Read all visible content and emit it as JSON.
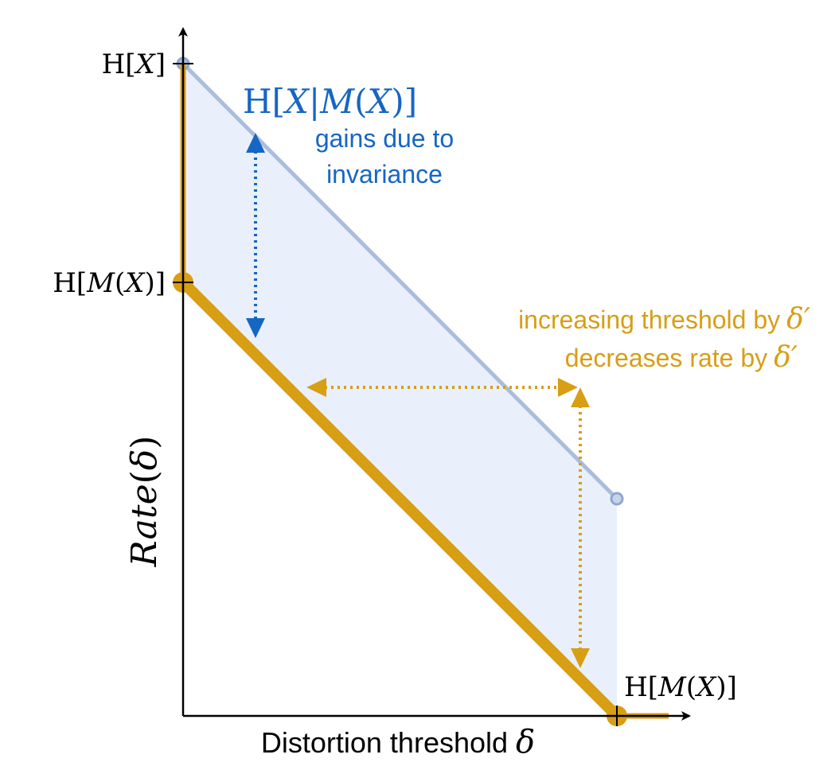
{
  "colors": {
    "orange": "#D89E14",
    "blue_text": "#1666C4",
    "blue_line": "#A9BEDC",
    "blue_fill": "#E9F0FB",
    "axis": "#000000"
  },
  "axes": {
    "xlabel_text": "Distortion threshold",
    "xlabel_symbol": "δ",
    "ylabel_name": "Rate",
    "ylabel_arg_open": "(",
    "ylabel_arg": "δ",
    "ylabel_arg_close": ")"
  },
  "ticks": {
    "y_top": {
      "H": "H",
      "open": "[",
      "var": "X",
      "close": "]"
    },
    "y_mid": {
      "H": "H",
      "open": "[",
      "var": "M",
      "paren_open": "(",
      "inner": "X",
      "paren_close": ")",
      "close": "]"
    },
    "x_right": {
      "H": "H",
      "open": "[",
      "var": "M",
      "paren_open": "(",
      "inner": "X",
      "paren_close": ")",
      "close": "]"
    }
  },
  "annotations": {
    "blue_heading": {
      "H": "H",
      "open": "[",
      "X": "X",
      "bar": "|",
      "M": "M",
      "paren_open": "(",
      "inner": "X",
      "paren_close": ")",
      "close": "]"
    },
    "blue_line1": "gains due to",
    "blue_line2": "invariance",
    "orange_line1": "increasing threshold by",
    "orange_line2": "decreases rate by",
    "delta_prime": "δ′"
  }
}
